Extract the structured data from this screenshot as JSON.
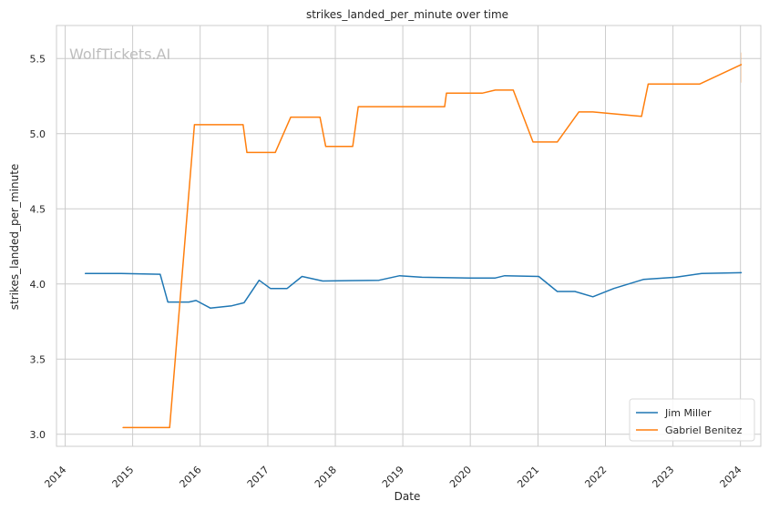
{
  "chart_data": {
    "type": "line",
    "title": "strikes_landed_per_minute over time",
    "xlabel": "Date",
    "ylabel": "strikes_landed_per_minute",
    "watermark": "WolfTickets.AI",
    "x_axis": {
      "type": "date",
      "range": [
        "2013-11-15",
        "2024-04-20"
      ]
    },
    "xticks": [
      "2014",
      "2015",
      "2016",
      "2017",
      "2018",
      "2019",
      "2020",
      "2021",
      "2022",
      "2023",
      "2024"
    ],
    "ylim": [
      2.92,
      5.72
    ],
    "yticks": [
      "3.0",
      "3.5",
      "4.0",
      "4.5",
      "5.0",
      "5.5"
    ],
    "grid": true,
    "legend_position": "bottom-right",
    "colors": {
      "jim_miller": "#1f77b4",
      "gabriel_benitez": "#ff7f0e",
      "grid": "#cccccc",
      "axes": "#cccccc",
      "watermark": "#bdbdbd"
    },
    "series": [
      {
        "name": "Jim Miller",
        "color": "#1f77b4",
        "points": [
          [
            "2014-04-20",
            4.07
          ],
          [
            "2014-11-01",
            4.07
          ],
          [
            "2015-05-30",
            4.065
          ],
          [
            "2015-07-10",
            3.88
          ],
          [
            "2015-11-01",
            3.88
          ],
          [
            "2015-12-10",
            3.89
          ],
          [
            "2016-02-25",
            3.84
          ],
          [
            "2016-06-20",
            3.855
          ],
          [
            "2016-08-25",
            3.875
          ],
          [
            "2016-11-15",
            4.025
          ],
          [
            "2017-01-15",
            3.97
          ],
          [
            "2017-04-15",
            3.97
          ],
          [
            "2017-07-05",
            4.05
          ],
          [
            "2017-10-25",
            4.02
          ],
          [
            "2018-08-25",
            4.025
          ],
          [
            "2018-12-15",
            4.055
          ],
          [
            "2019-04-15",
            4.045
          ],
          [
            "2020-01-05",
            4.04
          ],
          [
            "2020-05-15",
            4.04
          ],
          [
            "2020-07-05",
            4.055
          ],
          [
            "2021-01-05",
            4.05
          ],
          [
            "2021-04-15",
            3.95
          ],
          [
            "2021-07-20",
            3.95
          ],
          [
            "2021-10-25",
            3.915
          ],
          [
            "2022-02-15",
            3.97
          ],
          [
            "2022-07-25",
            4.03
          ],
          [
            "2023-01-15",
            4.045
          ],
          [
            "2023-06-05",
            4.07
          ],
          [
            "2024-01-05",
            4.075
          ]
        ]
      },
      {
        "name": "Gabriel Benitez",
        "color": "#ff7f0e",
        "points": [
          [
            "2014-11-10",
            3.045
          ],
          [
            "2015-07-20",
            3.045
          ],
          [
            "2015-12-01",
            5.06
          ],
          [
            "2016-08-20",
            5.06
          ],
          [
            "2016-09-10",
            4.875
          ],
          [
            "2017-02-10",
            4.875
          ],
          [
            "2017-05-05",
            5.11
          ],
          [
            "2017-10-10",
            5.11
          ],
          [
            "2017-11-10",
            4.915
          ],
          [
            "2018-04-05",
            4.915
          ],
          [
            "2018-05-05",
            5.18
          ],
          [
            "2019-08-15",
            5.18
          ],
          [
            "2019-08-25",
            5.27
          ],
          [
            "2020-03-05",
            5.27
          ],
          [
            "2020-05-15",
            5.29
          ],
          [
            "2020-08-20",
            5.29
          ],
          [
            "2020-12-05",
            4.945
          ],
          [
            "2021-04-15",
            4.945
          ],
          [
            "2021-08-10",
            5.145
          ],
          [
            "2021-10-25",
            5.145
          ],
          [
            "2022-07-15",
            5.115
          ],
          [
            "2022-08-20",
            5.33
          ],
          [
            "2023-05-25",
            5.33
          ],
          [
            "2024-01-05",
            5.46
          ]
        ]
      }
    ]
  }
}
